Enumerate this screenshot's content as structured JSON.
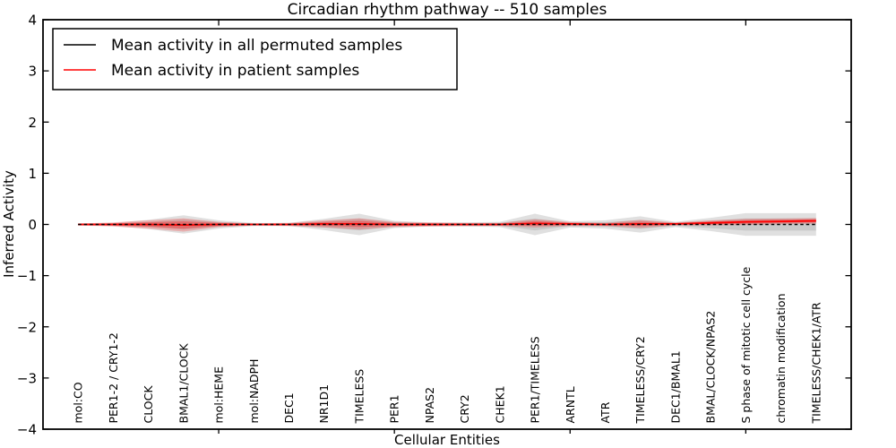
{
  "title": "Circadian rhythm pathway -- 510 samples",
  "colors": {
    "permuted_line": "#000000",
    "patient_line": "#ff0000",
    "permuted_band": "#000000",
    "patient_band": "#ff0000",
    "axis": "#000000",
    "background": "#ffffff"
  },
  "chart_data": {
    "type": "line",
    "title": "Circadian rhythm pathway -- 510 samples",
    "xlabel": "Cellular Entities",
    "ylabel": "Inferred Activity",
    "ylim": [
      -4,
      4
    ],
    "xlim": [
      0,
      23
    ],
    "yticks": [
      4,
      3,
      2,
      1,
      0,
      -1,
      -2,
      -3,
      -4
    ],
    "xticks": [
      5,
      10,
      15,
      20
    ],
    "grid": false,
    "legend_position": "upper left",
    "categories": [
      "mol:CO",
      "PER1-2 / CRY1-2",
      "CLOCK",
      "BMAL1/CLOCK",
      "mol:HEME",
      "mol:NADPH",
      "DEC1",
      "NR1D1",
      "TIMELESS",
      "PER1",
      "NPAS2",
      "CRY2",
      "CHEK1",
      "PER1/TIMELESS",
      "ARNTL",
      "ATR",
      "TIMELESS/CRY2",
      "DEC1/BMAL1",
      "BMAL/CLOCK/NPAS2",
      "S phase of mitotic cell cycle",
      "chromatin modification",
      "TIMELESS/CHEK1/ATR"
    ],
    "series": [
      {
        "name": "Mean activity in all permuted samples",
        "color": "#000000",
        "line_style": "dashed",
        "band_color": "#000000",
        "mean": [
          0,
          0,
          0,
          0,
          0,
          0,
          0,
          0,
          0,
          0,
          0,
          0,
          0,
          0,
          0,
          0,
          0,
          0,
          0,
          0,
          0,
          0
        ],
        "std": [
          0.02,
          0.03,
          0.09,
          0.18,
          0.08,
          0.03,
          0.03,
          0.11,
          0.21,
          0.07,
          0.04,
          0.04,
          0.05,
          0.21,
          0.06,
          0.08,
          0.16,
          0.05,
          0.13,
          0.22,
          0.22,
          0.22
        ]
      },
      {
        "name": "Mean activity in patient samples",
        "color": "#ff0000",
        "line_style": "solid",
        "band_color": "#ff0000",
        "mean": [
          0,
          0,
          0,
          -0.01,
          0,
          0,
          0,
          0.01,
          0.01,
          0,
          0,
          0,
          0,
          0.02,
          0.01,
          0,
          0.01,
          0.01,
          0.03,
          0.05,
          0.06,
          0.07
        ],
        "std": [
          0.02,
          0.04,
          0.08,
          0.13,
          0.05,
          0.02,
          0.03,
          0.07,
          0.11,
          0.05,
          0.04,
          0.03,
          0.03,
          0.08,
          0.04,
          0.03,
          0.08,
          0.03,
          0.05,
          0.06,
          0.055,
          0.055
        ]
      }
    ]
  }
}
